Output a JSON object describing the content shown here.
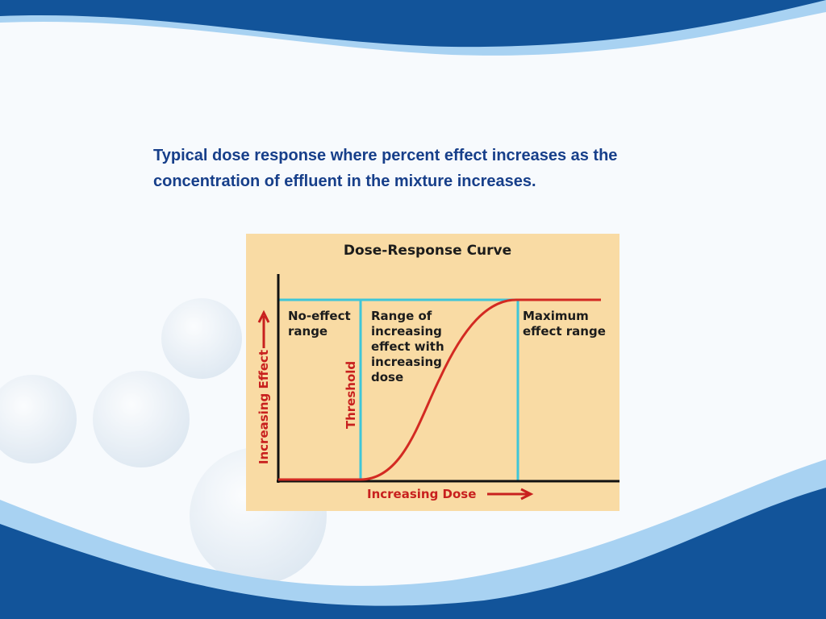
{
  "slide": {
    "caption": [
      "Typical dose response where percent effect increases as the",
      "concentration of effluent in the mixture increases."
    ]
  },
  "diagram": {
    "title": "Dose-Response Curve",
    "regions": [
      {
        "lines": [
          "No-effect",
          "range"
        ]
      },
      {
        "lines": [
          "Range of",
          "increasing",
          "effect with",
          "increasing",
          "dose"
        ]
      },
      {
        "lines": [
          "Maximum",
          "effect range"
        ]
      }
    ],
    "threshold": "Threshold",
    "y_axis": "Increasing Effect",
    "x_axis": "Increasing Dose"
  }
}
